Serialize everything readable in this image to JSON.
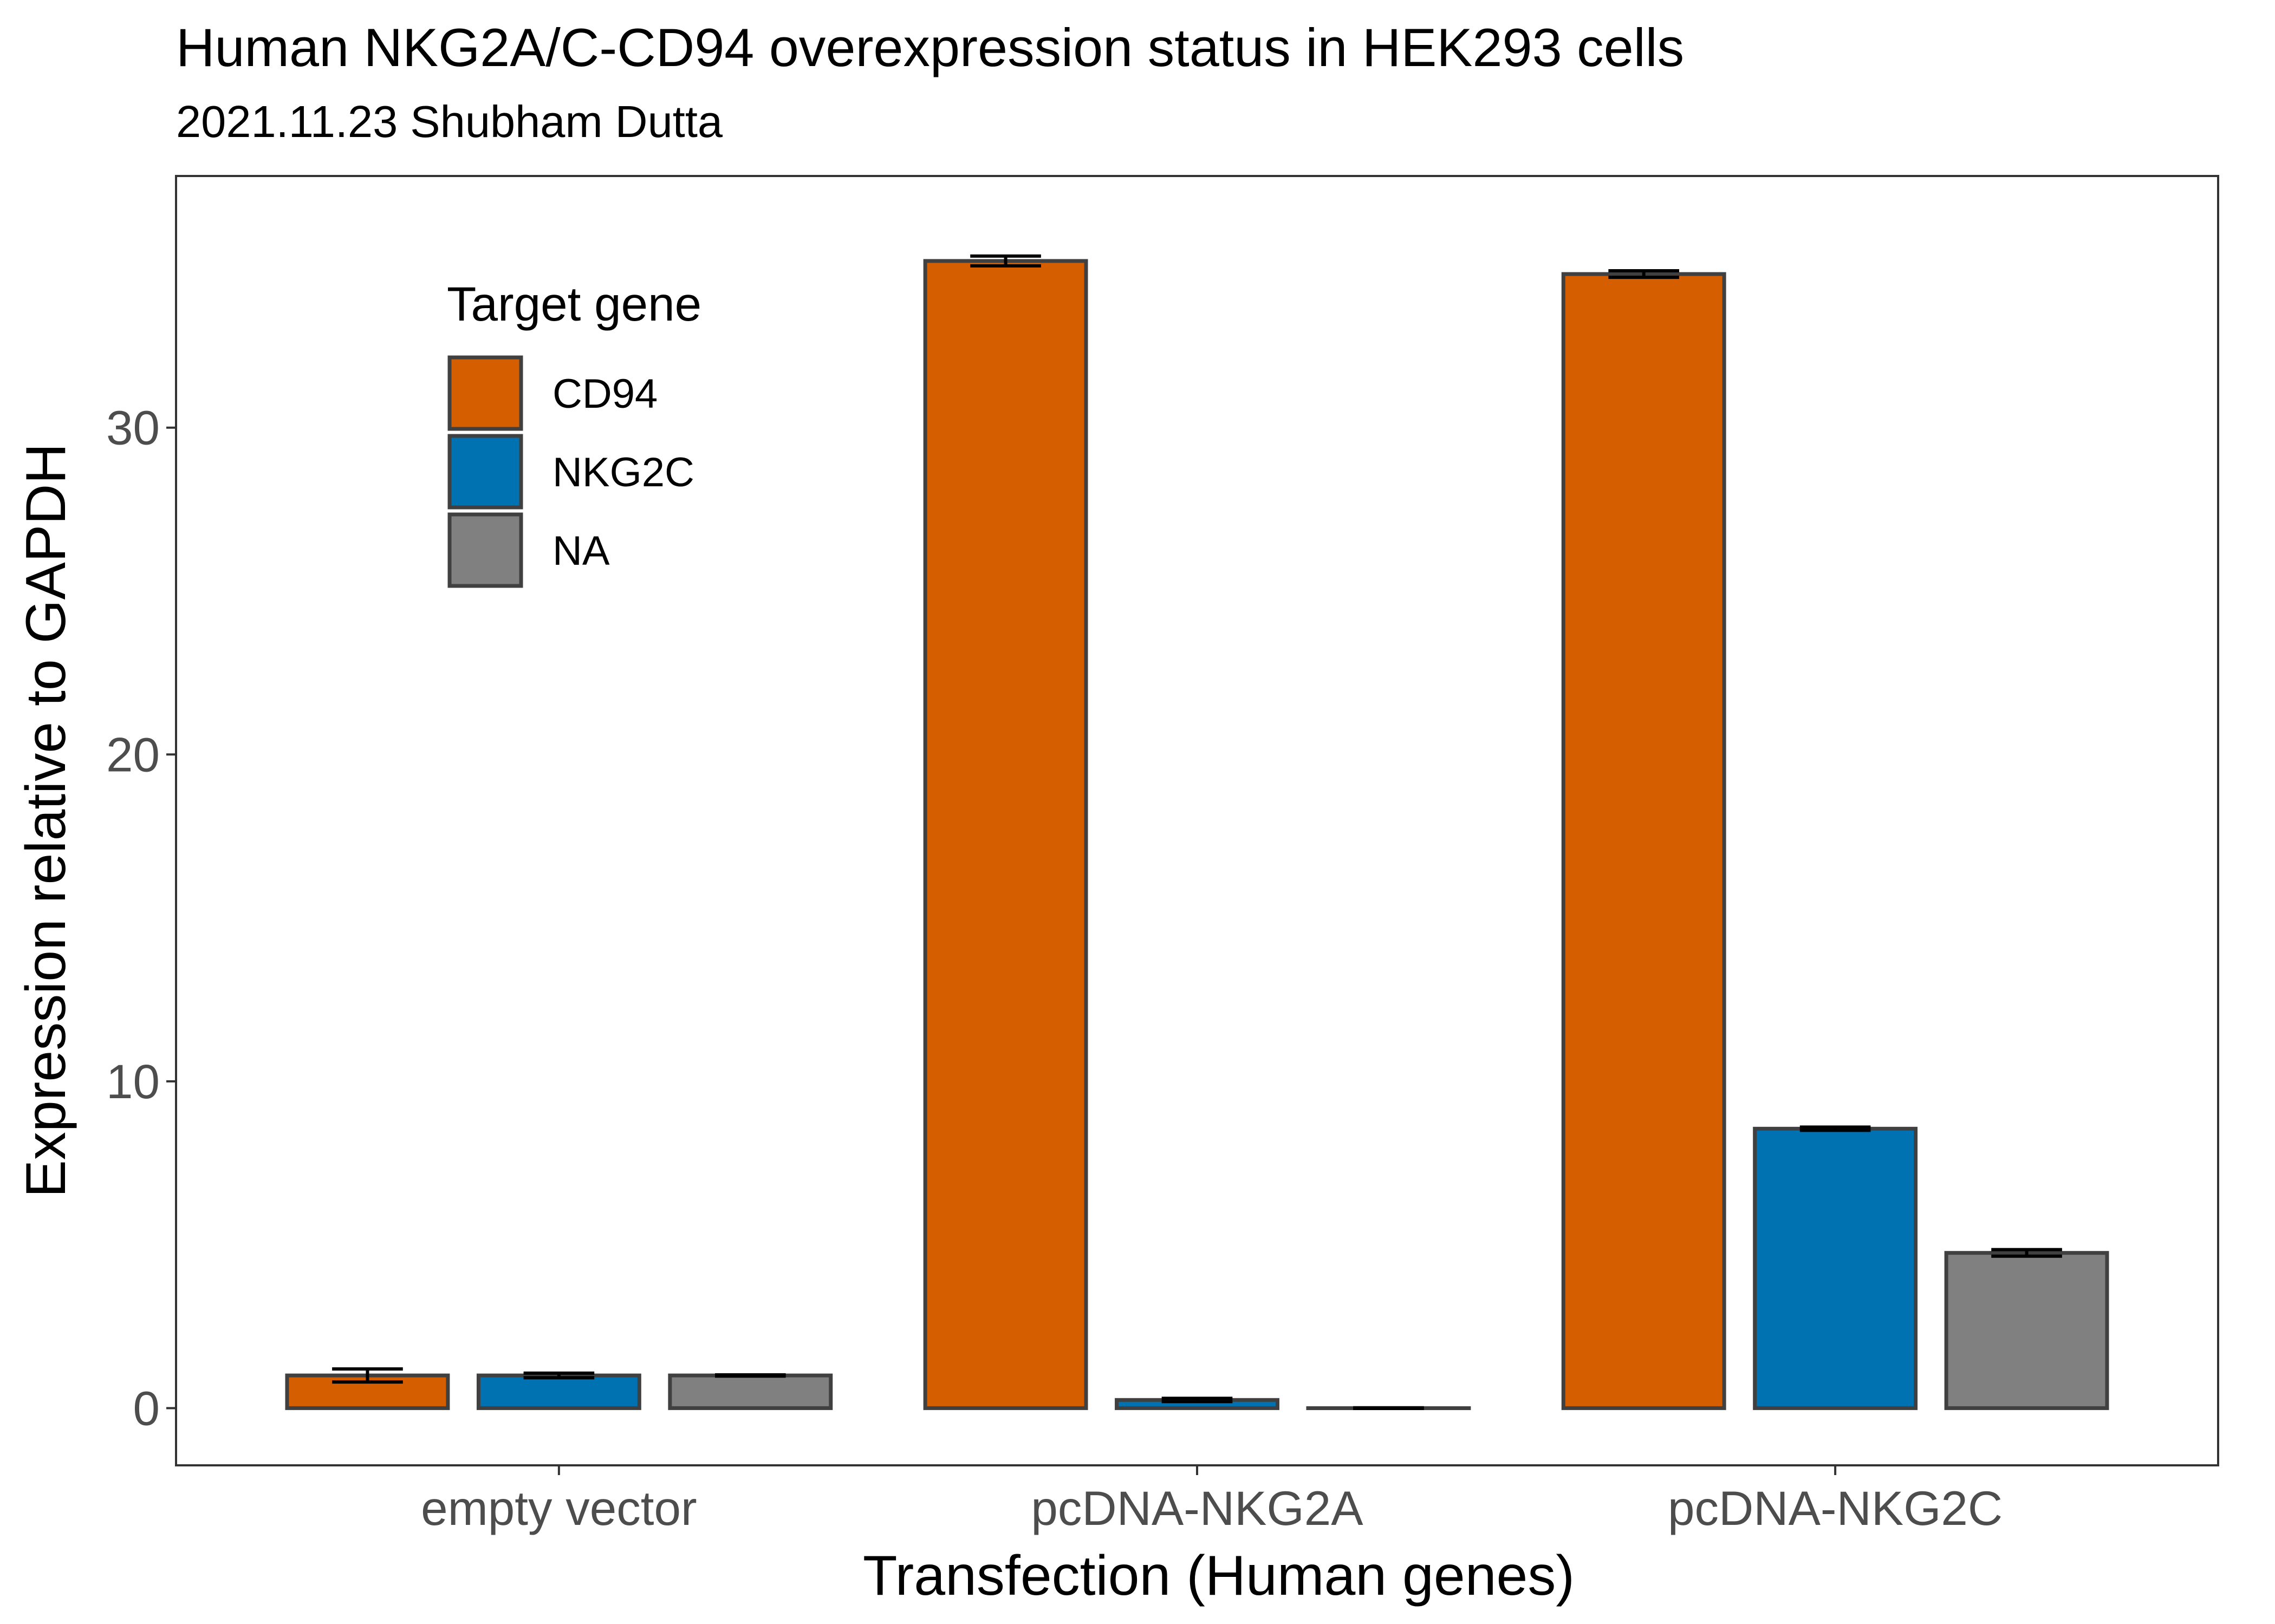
{
  "chart_data": {
    "type": "bar",
    "title": "Human NKG2A/C-CD94 overexpression status in HEK293 cells",
    "subtitle": "2021.11.23 Shubham Dutta",
    "xlabel": "Transfection (Human genes)",
    "ylabel": "Expression relative to GAPDH",
    "categories": [
      "empty vector",
      "pcDNA-NKG2A",
      "pcDNA-NKG2C"
    ],
    "series": [
      {
        "name": "CD94",
        "color": "#D55E00",
        "values": [
          1.0,
          35.1,
          34.7
        ],
        "errors": [
          0.2,
          0.15,
          0.1
        ]
      },
      {
        "name": "NKG2C",
        "color": "#0072B2",
        "values": [
          1.0,
          0.25,
          8.55
        ],
        "errors": [
          0.07,
          0.05,
          0.05
        ]
      },
      {
        "name": "NA",
        "color": "#808080",
        "values": [
          1.0,
          0.0,
          4.75
        ],
        "errors": [
          0.02,
          0.01,
          0.1
        ]
      }
    ],
    "ylim": [
      -1.75,
      37.7
    ],
    "yticks": [
      0,
      10,
      20,
      30
    ],
    "ytick_labels": [
      "0",
      "10",
      "20",
      "30"
    ],
    "legend": {
      "title": "Target gene",
      "position": "top-left"
    },
    "grid": false
  }
}
